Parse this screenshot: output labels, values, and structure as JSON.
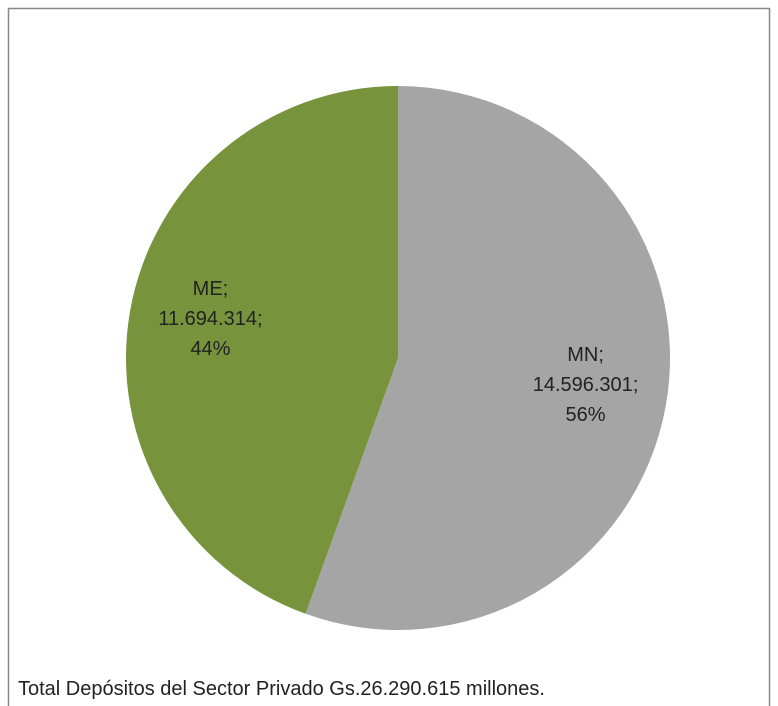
{
  "chart_data": {
    "type": "pie",
    "categories": [
      "MN",
      "ME"
    ],
    "values": [
      14596301,
      11694314
    ],
    "value_labels": [
      "14.596.301",
      "11.694.314"
    ],
    "percents": [
      56,
      44
    ],
    "percent_labels": [
      "56%",
      "44%"
    ],
    "label_separator": ";",
    "colors": [
      "#a5a5a5",
      "#77933c"
    ],
    "caption": "Total Depósitos del Sector Privado Gs.26.290.615 millones."
  }
}
